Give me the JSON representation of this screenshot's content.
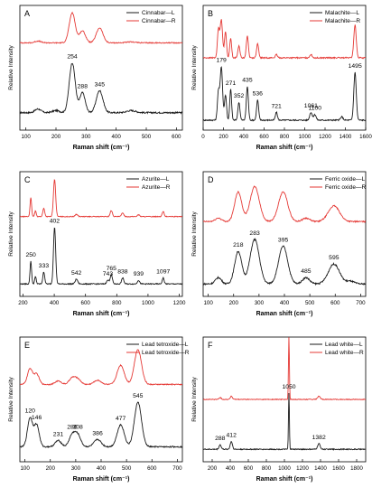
{
  "chart_data": [
    {
      "type": "line",
      "letter": "A",
      "xlabel": "Raman shift (cm⁻¹)",
      "ylabel": "Relative Intensity",
      "xlim": [
        80,
        620
      ],
      "xticks": [
        100,
        200,
        300,
        400,
        500,
        600
      ],
      "series": [
        {
          "name": "Cinnabar—L",
          "color": "#1a1a1a",
          "baseline": 0.14,
          "scale": 0.42,
          "noise": 0.012,
          "peaks": [
            [
              254,
              0.95,
              10
            ],
            [
              288,
              0.38,
              9
            ],
            [
              345,
              0.42,
              11
            ],
            [
              140,
              0.07,
              10
            ],
            [
              200,
              0.04,
              12
            ],
            [
              450,
              0.04,
              15
            ]
          ]
        },
        {
          "name": "Cinnabar—R",
          "color": "#e53935",
          "baseline": 0.7,
          "scale": 0.24,
          "noise": 0.008,
          "peaks": [
            [
              254,
              1.0,
              10
            ],
            [
              288,
              0.4,
              10
            ],
            [
              345,
              0.5,
              11
            ],
            [
              140,
              0.06,
              10
            ],
            [
              450,
              0.03,
              15
            ]
          ]
        }
      ],
      "annotations": [
        {
          "x": 254,
          "label": "254"
        },
        {
          "x": 288,
          "label": "288"
        },
        {
          "x": 345,
          "label": "345"
        }
      ]
    },
    {
      "type": "line",
      "letter": "B",
      "xlabel": "Raman shift (cm⁻¹)",
      "ylabel": "Relative Intensity",
      "xlim": [
        0,
        1600
      ],
      "xticks": [
        0,
        200,
        400,
        600,
        800,
        1000,
        1200,
        1400,
        1600
      ],
      "series": [
        {
          "name": "Malachite—L",
          "color": "#1a1a1a",
          "baseline": 0.08,
          "scale": 0.45,
          "noise": 0.01,
          "peaks": [
            [
              179,
              0.95,
              12
            ],
            [
              150,
              0.5,
              10
            ],
            [
              220,
              0.45,
              10
            ],
            [
              271,
              0.55,
              9
            ],
            [
              352,
              0.32,
              10
            ],
            [
              435,
              0.6,
              10
            ],
            [
              536,
              0.36,
              10
            ],
            [
              721,
              0.14,
              10
            ],
            [
              1061,
              0.14,
              12
            ],
            [
              1100,
              0.1,
              12
            ],
            [
              1495,
              0.85,
              12
            ],
            [
              1365,
              0.06,
              12
            ]
          ]
        },
        {
          "name": "Malachite—R",
          "color": "#e53935",
          "baseline": 0.58,
          "scale": 0.32,
          "noise": 0.01,
          "peaks": [
            [
              179,
              0.95,
              12
            ],
            [
              150,
              0.7,
              10
            ],
            [
              220,
              0.65,
              10
            ],
            [
              271,
              0.5,
              9
            ],
            [
              352,
              0.3,
              10
            ],
            [
              435,
              0.55,
              10
            ],
            [
              536,
              0.35,
              10
            ],
            [
              721,
              0.08,
              10
            ],
            [
              1061,
              0.08,
              12
            ],
            [
              1495,
              0.82,
              12
            ]
          ]
        }
      ],
      "annotations": [
        {
          "x": 179,
          "label": "179"
        },
        {
          "x": 271,
          "label": "271"
        },
        {
          "x": 352,
          "label": "352"
        },
        {
          "x": 435,
          "label": "435"
        },
        {
          "x": 536,
          "label": "536"
        },
        {
          "x": 721,
          "label": "721"
        },
        {
          "x": 1061,
          "label": "1061"
        },
        {
          "x": 1100,
          "label": "1100"
        },
        {
          "x": 1495,
          "label": "1495"
        }
      ]
    },
    {
      "type": "line",
      "letter": "C",
      "xlabel": "Raman shift (cm⁻¹)",
      "ylabel": "Relative Intensity",
      "xlim": [
        180,
        1220
      ],
      "xticks": [
        200,
        400,
        600,
        800,
        1000,
        1200
      ],
      "series": [
        {
          "name": "Azurite—L",
          "color": "#1a1a1a",
          "baseline": 0.1,
          "scale": 0.48,
          "noise": 0.008,
          "peaks": [
            [
              250,
              0.38,
              5
            ],
            [
              280,
              0.12,
              5
            ],
            [
              333,
              0.2,
              6
            ],
            [
              402,
              0.95,
              7
            ],
            [
              542,
              0.08,
              8
            ],
            [
              743,
              0.06,
              8
            ],
            [
              765,
              0.15,
              7
            ],
            [
              838,
              0.1,
              7
            ],
            [
              939,
              0.06,
              7
            ],
            [
              1097,
              0.1,
              6
            ]
          ]
        },
        {
          "name": "Azurite—R",
          "color": "#e53935",
          "baseline": 0.64,
          "scale": 0.3,
          "noise": 0.006,
          "peaks": [
            [
              250,
              0.5,
              5
            ],
            [
              280,
              0.15,
              5
            ],
            [
              333,
              0.22,
              6
            ],
            [
              402,
              1.0,
              7
            ],
            [
              542,
              0.06,
              8
            ],
            [
              765,
              0.16,
              7
            ],
            [
              838,
              0.1,
              7
            ],
            [
              939,
              0.05,
              7
            ],
            [
              1097,
              0.14,
              6
            ]
          ]
        }
      ],
      "annotations": [
        {
          "x": 250,
          "label": "250"
        },
        {
          "x": 333,
          "label": "333"
        },
        {
          "x": 402,
          "label": "402"
        },
        {
          "x": 542,
          "label": "542"
        },
        {
          "x": 743,
          "label": "743"
        },
        {
          "x": 765,
          "label": "765"
        },
        {
          "x": 838,
          "label": "838"
        },
        {
          "x": 939,
          "label": "939"
        },
        {
          "x": 1097,
          "label": "1097"
        }
      ]
    },
    {
      "type": "line",
      "letter": "D",
      "xlabel": "Raman shift (cm⁻¹)",
      "ylabel": "Relative Intensity",
      "xlim": [
        80,
        720
      ],
      "xticks": [
        100,
        200,
        300,
        400,
        500,
        600,
        700
      ],
      "series": [
        {
          "name": "Ferric oxide—L",
          "color": "#1a1a1a",
          "baseline": 0.1,
          "scale": 0.42,
          "noise": 0.012,
          "peaks": [
            [
              140,
              0.12,
              12
            ],
            [
              218,
              0.62,
              14
            ],
            [
              283,
              0.85,
              18
            ],
            [
              395,
              0.72,
              18
            ],
            [
              485,
              0.12,
              14
            ],
            [
              595,
              0.38,
              22
            ],
            [
              660,
              0.05,
              15
            ]
          ]
        },
        {
          "name": "Ferric oxide—R",
          "color": "#e53935",
          "baseline": 0.6,
          "scale": 0.28,
          "noise": 0.01,
          "peaks": [
            [
              140,
              0.1,
              12
            ],
            [
              218,
              0.85,
              14
            ],
            [
              283,
              1.0,
              18
            ],
            [
              395,
              0.85,
              18
            ],
            [
              485,
              0.1,
              14
            ],
            [
              595,
              0.45,
              22
            ]
          ]
        }
      ],
      "annotations": [
        {
          "x": 218,
          "label": "218"
        },
        {
          "x": 283,
          "label": "283"
        },
        {
          "x": 395,
          "label": "395"
        },
        {
          "x": 485,
          "label": "485"
        },
        {
          "x": 595,
          "label": "595"
        }
      ]
    },
    {
      "type": "line",
      "letter": "E",
      "xlabel": "Raman shift (cm⁻¹)",
      "ylabel": "Relative Intensity",
      "xlim": [
        80,
        720
      ],
      "xticks": [
        100,
        200,
        300,
        400,
        500,
        600,
        700
      ],
      "series": [
        {
          "name": "Lead tetroxide—L",
          "color": "#1a1a1a",
          "baseline": 0.12,
          "scale": 0.42,
          "noise": 0.01,
          "peaks": [
            [
              120,
              0.55,
              10
            ],
            [
              146,
              0.42,
              10
            ],
            [
              231,
              0.12,
              12
            ],
            [
              286,
              0.22,
              12
            ],
            [
              308,
              0.22,
              12
            ],
            [
              386,
              0.14,
              14
            ],
            [
              477,
              0.42,
              14
            ],
            [
              545,
              0.85,
              14
            ]
          ]
        },
        {
          "name": "Lead tetroxide—R",
          "color": "#e53935",
          "baseline": 0.62,
          "scale": 0.28,
          "noise": 0.008,
          "peaks": [
            [
              120,
              0.45,
              10
            ],
            [
              146,
              0.3,
              10
            ],
            [
              231,
              0.1,
              12
            ],
            [
              286,
              0.18,
              12
            ],
            [
              308,
              0.15,
              12
            ],
            [
              386,
              0.12,
              14
            ],
            [
              477,
              0.55,
              14
            ],
            [
              545,
              1.0,
              14
            ]
          ]
        }
      ],
      "annotations": [
        {
          "x": 120,
          "label": "120"
        },
        {
          "x": 146,
          "label": "146"
        },
        {
          "x": 231,
          "label": "231"
        },
        {
          "x": 286,
          "label": "286"
        },
        {
          "x": 308,
          "label": "308"
        },
        {
          "x": 386,
          "label": "386"
        },
        {
          "x": 477,
          "label": "477"
        },
        {
          "x": 545,
          "label": "545"
        }
      ]
    },
    {
      "type": "line",
      "letter": "F",
      "xlabel": "Raman shift (cm⁻¹)",
      "ylabel": "Relative Intensity",
      "xlim": [
        100,
        1900
      ],
      "xticks": [
        200,
        400,
        600,
        800,
        1000,
        1200,
        1400,
        1600,
        1800
      ],
      "series": [
        {
          "name": "Lead white—L",
          "color": "#1a1a1a",
          "baseline": 0.1,
          "scale": 0.45,
          "noise": 0.008,
          "peaks": [
            [
              288,
              0.08,
              12
            ],
            [
              412,
              0.14,
              12
            ],
            [
              1050,
              1.0,
              5
            ],
            [
              1382,
              0.1,
              14
            ]
          ]
        },
        {
          "name": "Lead white—R",
          "color": "#e53935",
          "baseline": 0.5,
          "scale": 0.5,
          "noise": 0.006,
          "peaks": [
            [
              288,
              0.03,
              12
            ],
            [
              412,
              0.05,
              12
            ],
            [
              1050,
              1.0,
              5
            ],
            [
              1382,
              0.05,
              14
            ]
          ]
        }
      ],
      "annotations": [
        {
          "x": 288,
          "label": "288"
        },
        {
          "x": 412,
          "label": "412"
        },
        {
          "x": 1050,
          "label": "1050"
        },
        {
          "x": 1382,
          "label": "1382"
        }
      ]
    }
  ]
}
